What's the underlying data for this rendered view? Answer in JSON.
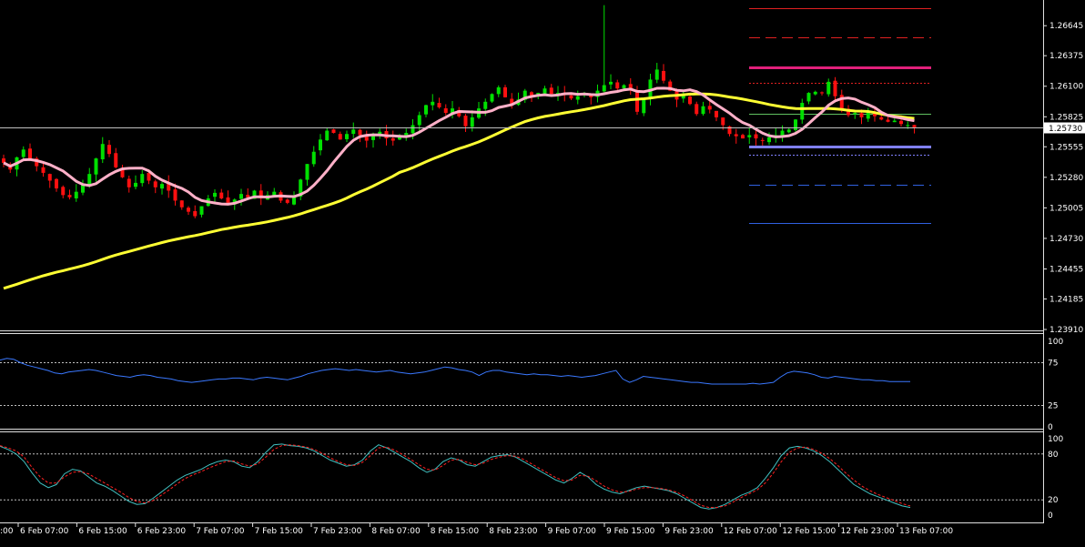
{
  "colors": {
    "background": "#000000",
    "frame": "#e0e0e0",
    "bull": "#00e000",
    "bear": "#ff1010",
    "ma_fast": "#ffb0c8",
    "ma_slow": "#ffff33",
    "rsi": "#3a78ff",
    "stoch_main": "#40c0c0",
    "stoch_signal": "#ff2020",
    "current_price": "#ffffff",
    "level_top": "#e02020",
    "level_mid_top": "#e0207a",
    "level_low": "#8080ff",
    "level_blue": "#3060e0",
    "level_green": "#60c060"
  },
  "price_axis": {
    "ticks": [
      "1.26645",
      "1.26375",
      "1.26100",
      "1.25825",
      "1.25555",
      "1.25280",
      "1.25005",
      "1.24730",
      "1.24455",
      "1.24185",
      "1.23910"
    ],
    "current": "1.25730"
  },
  "rsi_axis": {
    "ticks": [
      "100",
      "75",
      "25",
      "0"
    ]
  },
  "stoch_axis": {
    "ticks": [
      "100",
      "80",
      "20",
      "0"
    ]
  },
  "time_axis": {
    "labels": [
      "6 Feb 07:00",
      "6 Feb 15:00",
      "6 Feb 23:00",
      "7 Feb 07:00",
      "7 Feb 15:00",
      "7 Feb 23:00",
      "8 Feb 07:00",
      "8 Feb 15:00",
      "8 Feb 23:00",
      "9 Feb 07:00",
      "9 Feb 15:00",
      "9 Feb 23:00",
      "12 Feb 07:00",
      "12 Feb 15:00",
      "12 Feb 23:00",
      "13 Feb 07:00"
    ],
    "first_partial": ":00"
  },
  "chart_data": [
    {
      "type": "candlestick",
      "panel": "price",
      "ylim": [
        1.2391,
        1.2686
      ],
      "close_series": [
        1.2541,
        1.2535,
        1.2546,
        1.2553,
        1.2545,
        1.2538,
        1.2532,
        1.2525,
        1.2518,
        1.2512,
        1.251,
        1.2515,
        1.2522,
        1.2531,
        1.2545,
        1.2558,
        1.2549,
        1.2537,
        1.2528,
        1.2519,
        1.2523,
        1.2531,
        1.2525,
        1.2519,
        1.2522,
        1.2516,
        1.2507,
        1.2501,
        1.2497,
        1.2493,
        1.2502,
        1.2509,
        1.2514,
        1.2509,
        1.2505,
        1.2508,
        1.2513,
        1.251,
        1.2516,
        1.2509,
        1.2512,
        1.2515,
        1.2507,
        1.2505,
        1.2511,
        1.2526,
        1.254,
        1.2551,
        1.2562,
        1.257,
        1.2568,
        1.2562,
        1.2567,
        1.2571,
        1.2566,
        1.2561,
        1.2565,
        1.2569,
        1.2563,
        1.2561,
        1.2564,
        1.2568,
        1.2575,
        1.2584,
        1.2593,
        1.2596,
        1.2591,
        1.2586,
        1.259,
        1.2583,
        1.2574,
        1.2582,
        1.259,
        1.2596,
        1.2603,
        1.2609,
        1.26,
        1.2593,
        1.2598,
        1.2606,
        1.2601,
        1.2604,
        1.2608,
        1.2603,
        1.2604,
        1.2602,
        1.2599,
        1.2601,
        1.2603,
        1.26,
        1.2606,
        1.2611,
        1.2614,
        1.2608,
        1.2611,
        1.2606,
        1.2587,
        1.2598,
        1.2616,
        1.2625,
        1.2615,
        1.2606,
        1.2598,
        1.2602,
        1.2594,
        1.2585,
        1.2592,
        1.2589,
        1.2582,
        1.2575,
        1.2567,
        1.2565,
        1.2563,
        1.2566,
        1.2563,
        1.2561,
        1.2564,
        1.2566,
        1.257,
        1.2571,
        1.258,
        1.2595,
        1.2604,
        1.2605,
        1.2604,
        1.2614,
        1.2601,
        1.2589,
        1.2584,
        1.2586,
        1.2582,
        1.2587,
        1.2583,
        1.258,
        1.2578,
        1.2579,
        1.2576,
        1.2575,
        1.2573
      ],
      "indicators": [
        {
          "name": "fast moving average",
          "color": "#ffb0c8"
        },
        {
          "name": "slow moving average",
          "color": "#ffff33"
        }
      ],
      "horizontal_levels": [
        {
          "price": 1.268,
          "style": "solid",
          "color": "#e02020"
        },
        {
          "price": 1.2654,
          "style": "dashed",
          "color": "#e02020"
        },
        {
          "price": 1.2627,
          "style": "solid-thick",
          "color": "#e0207a"
        },
        {
          "price": 1.2613,
          "style": "dotted",
          "color": "#e02020"
        },
        {
          "price": 1.2585,
          "style": "solid",
          "color": "#60c060"
        },
        {
          "price": 1.2556,
          "style": "solid-thick",
          "color": "#8080ff"
        },
        {
          "price": 1.2548,
          "style": "dotted",
          "color": "#8080ff"
        },
        {
          "price": 1.2521,
          "style": "dashed",
          "color": "#3060e0"
        },
        {
          "price": 1.2487,
          "style": "solid",
          "color": "#3060e0"
        }
      ]
    },
    {
      "type": "line",
      "panel": "rsi",
      "ylim": [
        0,
        100
      ],
      "levels": [
        75,
        25
      ],
      "values": [
        78,
        80,
        79,
        75,
        72,
        70,
        68,
        66,
        63,
        62,
        64,
        65,
        66,
        67,
        66,
        64,
        62,
        60,
        59,
        58,
        60,
        61,
        60,
        58,
        57,
        56,
        54,
        53,
        52,
        53,
        54,
        55,
        56,
        56,
        57,
        57,
        56,
        55,
        57,
        58,
        57,
        56,
        55,
        57,
        59,
        62,
        64,
        66,
        67,
        68,
        67,
        66,
        67,
        66,
        65,
        64,
        65,
        66,
        64,
        63,
        62,
        63,
        64,
        66,
        68,
        70,
        69,
        67,
        66,
        64,
        60,
        64,
        66,
        66,
        64,
        63,
        62,
        61,
        62,
        61,
        61,
        60,
        59,
        60,
        59,
        58,
        59,
        60,
        62,
        64,
        66,
        56,
        52,
        55,
        59,
        58,
        57,
        56,
        55,
        54,
        53,
        52,
        52,
        51,
        50,
        50,
        50,
        50,
        50,
        50,
        51,
        50,
        51,
        52,
        58,
        63,
        65,
        64,
        63,
        61,
        58,
        57,
        59,
        58,
        57,
        56,
        55,
        55,
        54,
        54,
        53,
        53,
        53,
        53
      ]
    },
    {
      "type": "line",
      "panel": "stochastic",
      "ylim": [
        0,
        100
      ],
      "levels": [
        80,
        20
      ],
      "series": [
        {
          "role": "main",
          "values": [
            90,
            86,
            80,
            70,
            55,
            42,
            36,
            40,
            54,
            60,
            58,
            50,
            42,
            38,
            32,
            25,
            18,
            14,
            15,
            22,
            30,
            38,
            46,
            52,
            56,
            60,
            66,
            70,
            72,
            70,
            64,
            62,
            70,
            82,
            92,
            93,
            91,
            90,
            88,
            84,
            78,
            72,
            68,
            64,
            66,
            72,
            84,
            92,
            88,
            82,
            76,
            70,
            62,
            56,
            60,
            70,
            75,
            72,
            66,
            64,
            70,
            76,
            78,
            79,
            76,
            70,
            64,
            58,
            52,
            46,
            42,
            48,
            56,
            50,
            40,
            34,
            30,
            28,
            32,
            36,
            38,
            36,
            34,
            32,
            28,
            22,
            16,
            10,
            8,
            10,
            14,
            20,
            26,
            30,
            36,
            48,
            62,
            78,
            88,
            90,
            88,
            84,
            78,
            70,
            60,
            50,
            40,
            34,
            28,
            24,
            20,
            16,
            12,
            10
          ]
        },
        {
          "role": "signal",
          "values": [
            91,
            88,
            84,
            76,
            62,
            50,
            42,
            42,
            50,
            56,
            57,
            54,
            48,
            42,
            36,
            30,
            23,
            18,
            16,
            19,
            26,
            33,
            41,
            48,
            53,
            57,
            62,
            66,
            70,
            71,
            67,
            64,
            67,
            76,
            86,
            91,
            92,
            91,
            89,
            86,
            81,
            75,
            70,
            66,
            65,
            69,
            78,
            88,
            89,
            85,
            79,
            73,
            66,
            60,
            59,
            65,
            72,
            73,
            69,
            66,
            68,
            73,
            76,
            78,
            77,
            73,
            67,
            61,
            55,
            49,
            45,
            46,
            52,
            51,
            45,
            38,
            33,
            30,
            31,
            34,
            36,
            36,
            35,
            33,
            30,
            25,
            19,
            13,
            10,
            10,
            12,
            17,
            23,
            28,
            33,
            42,
            55,
            70,
            82,
            88,
            89,
            86,
            81,
            74,
            65,
            55,
            46,
            38,
            32,
            27,
            23,
            19,
            15,
            12
          ]
        }
      ]
    }
  ]
}
